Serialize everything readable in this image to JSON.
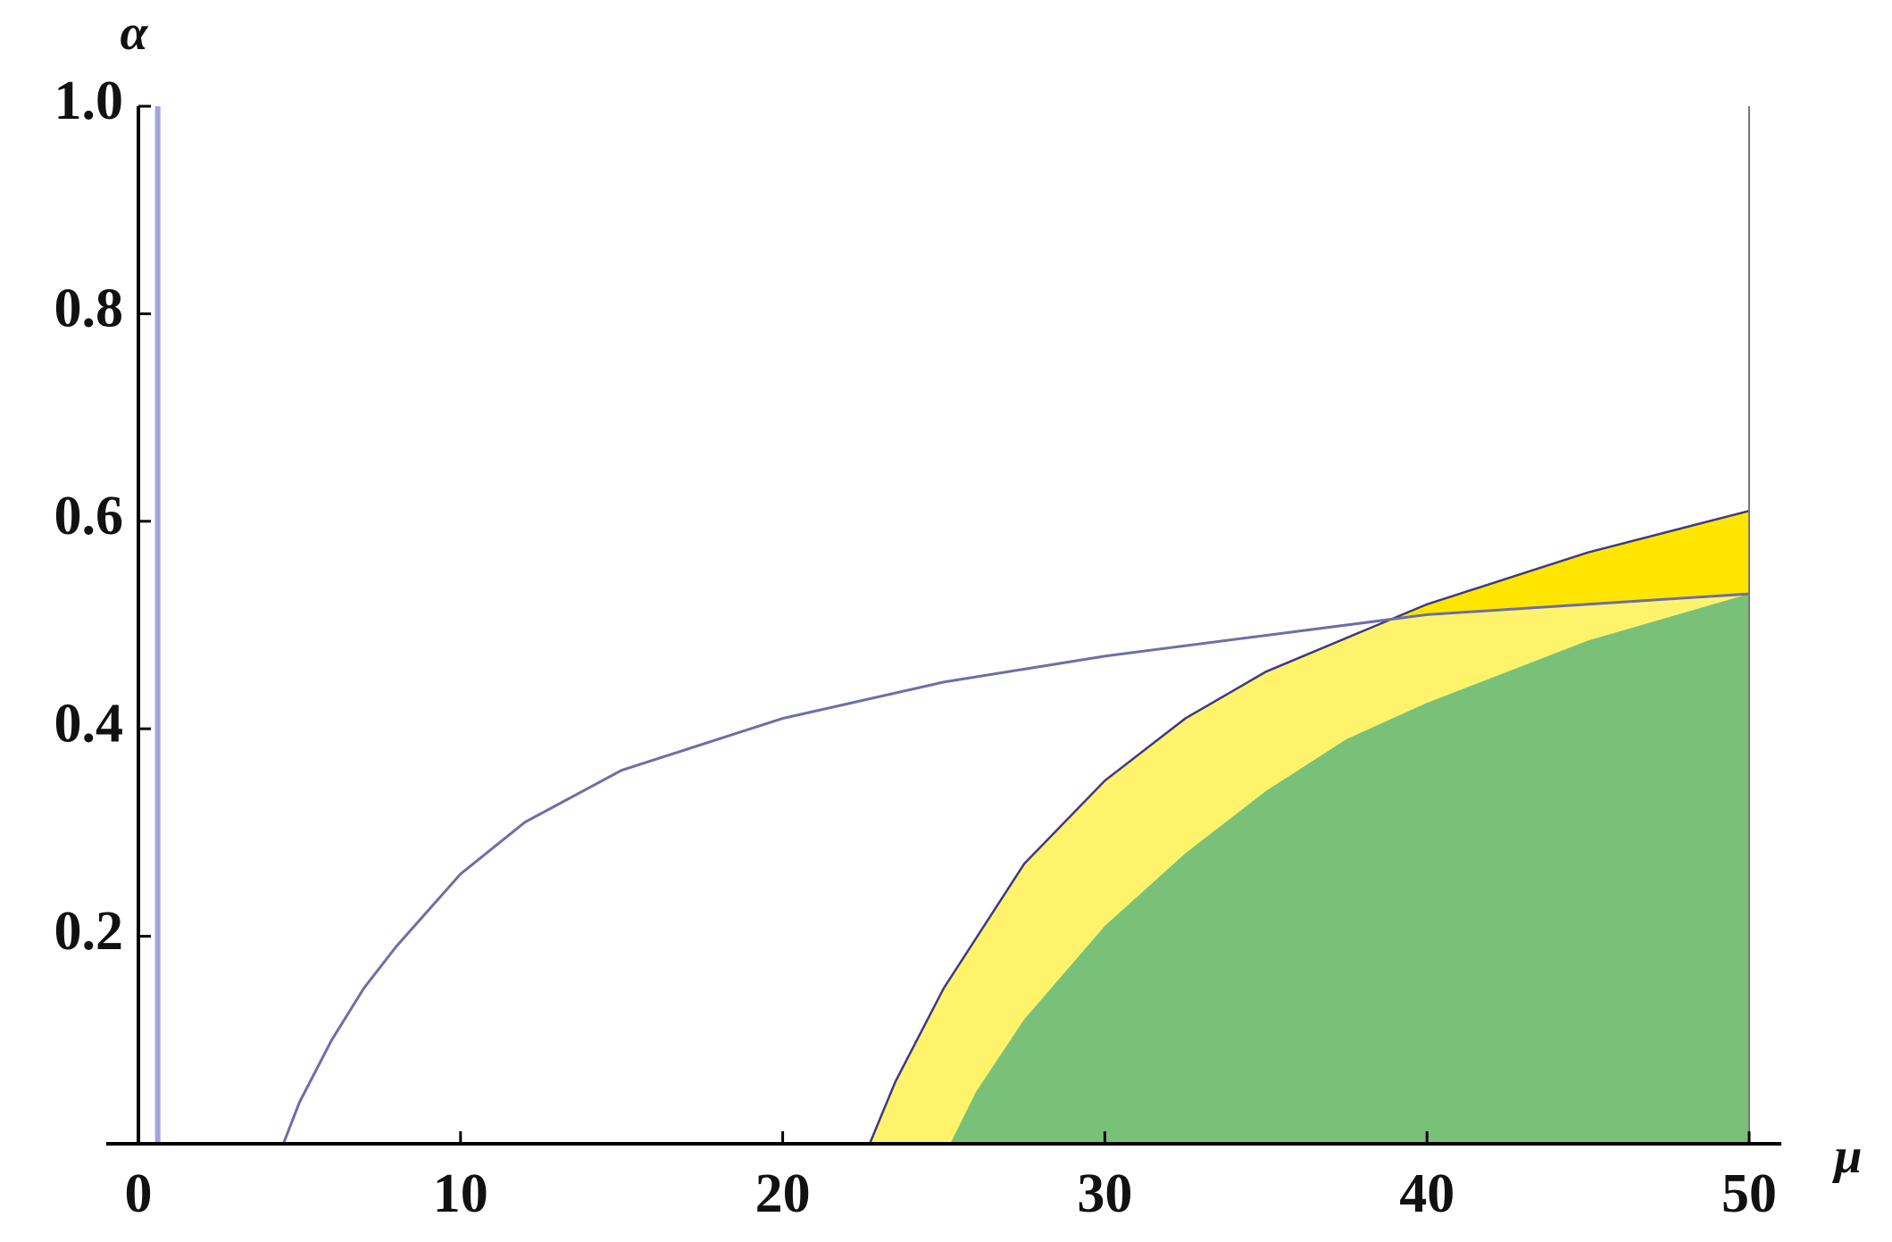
{
  "chart_data": {
    "type": "region",
    "y_label": "α",
    "x_label": "μ",
    "xlim": [
      -1,
      51
    ],
    "ylim": [
      0,
      1
    ],
    "xticks": [
      0,
      10,
      20,
      30,
      40,
      50
    ],
    "yticks": [
      0.2,
      0.4,
      0.6,
      0.8,
      {
        "value": 1,
        "label": "1.0"
      }
    ],
    "series": [
      {
        "color": "#6e6ea8",
        "fill": "#fff36b",
        "x": [
          4.5,
          5,
          6,
          7,
          8,
          10,
          12,
          15,
          20,
          25,
          30,
          35,
          40,
          45,
          50
        ],
        "values": [
          0,
          0.04,
          0.1,
          0.15,
          0.19,
          0.26,
          0.31,
          0.36,
          0.41,
          0.445,
          0.47,
          0.49,
          0.51,
          0.52,
          0.53
        ]
      },
      {
        "color": "#3e3a80",
        "fill": "#ffe600",
        "x": [
          22.7,
          23.5,
          25,
          27.5,
          30,
          32.5,
          35,
          40,
          45,
          50
        ],
        "values": [
          0,
          0.06,
          0.15,
          0.27,
          0.35,
          0.41,
          0.455,
          0.52,
          0.57,
          0.61
        ]
      },
      {
        "color": "#79c179",
        "fill": "#79c179",
        "x": [
          25.2,
          26,
          27.5,
          30,
          32.5,
          35,
          37.5,
          40,
          45,
          50
        ],
        "values": [
          0,
          0.05,
          0.12,
          0.21,
          0.28,
          0.34,
          0.39,
          0.425,
          0.485,
          0.53
        ]
      },
      {
        "color": "#a4a4dc",
        "x": [
          0.6,
          0.6
        ],
        "values": [
          0,
          1
        ]
      }
    ]
  }
}
